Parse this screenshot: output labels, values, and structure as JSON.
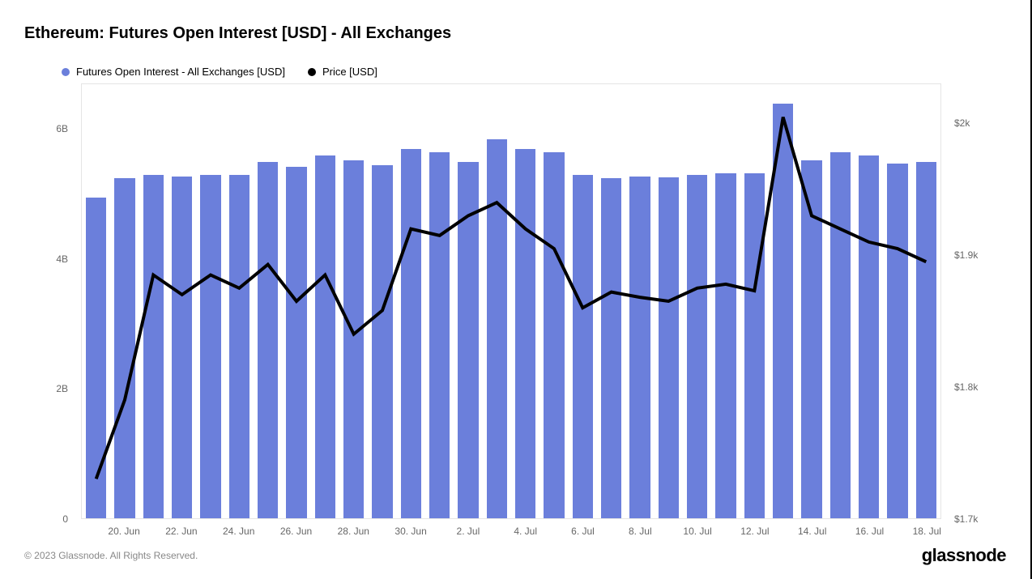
{
  "title": "Ethereum: Futures Open Interest [USD] - All Exchanges",
  "legend": {
    "bars": "Futures Open Interest - All Exchanges [USD]",
    "line": "Price [USD]"
  },
  "chart": {
    "type": "bar+line",
    "background_color": "#ffffff",
    "plot_border_color": "#e5e5e5",
    "bar_color": "#6b7fdb",
    "line_color": "#000000",
    "line_width": 2,
    "bar_width_ratio": 0.72,
    "x_labels": [
      "20. Jun",
      "22. Jun",
      "24. Jun",
      "26. Jun",
      "28. Jun",
      "30. Jun",
      "2. Jul",
      "4. Jul",
      "6. Jul",
      "8. Jul",
      "10. Jul",
      "12. Jul",
      "14. Jul",
      "16. Jul",
      "18. Jul"
    ],
    "x_label_every": 2,
    "x_label_start_index": 1,
    "y_left": {
      "min": 0,
      "max": 6700000000,
      "ticks": [
        0,
        2000000000,
        4000000000,
        6000000000
      ],
      "tick_labels": [
        "0",
        "2B",
        "4B",
        "6B"
      ],
      "fontsize": 12,
      "color": "#666666"
    },
    "y_right": {
      "min": 1700,
      "max": 2030,
      "ticks": [
        1700,
        1800,
        1900,
        2000
      ],
      "tick_labels": [
        "$1.7k",
        "$1.8k",
        "$1.9k",
        "$2k"
      ],
      "fontsize": 12,
      "color": "#666666"
    },
    "dates": [
      "19. Jun",
      "20. Jun",
      "21. Jun",
      "22. Jun",
      "23. Jun",
      "24. Jun",
      "25. Jun",
      "26. Jun",
      "27. Jun",
      "28. Jun",
      "29. Jun",
      "30. Jun",
      "1. Jul",
      "2. Jul",
      "3. Jul",
      "4. Jul",
      "5. Jul",
      "6. Jul",
      "7. Jul",
      "8. Jul",
      "9. Jul",
      "10. Jul",
      "11. Jul",
      "12. Jul",
      "13. Jul",
      "14. Jul",
      "15. Jul",
      "16. Jul",
      "17. Jul",
      "18. Jul"
    ],
    "bar_values": [
      4950000000,
      5250000000,
      5300000000,
      5280000000,
      5300000000,
      5300000000,
      5500000000,
      5420000000,
      5600000000,
      5520000000,
      5450000000,
      5700000000,
      5650000000,
      5500000000,
      5850000000,
      5700000000,
      5650000000,
      5300000000,
      5250000000,
      5280000000,
      5260000000,
      5300000000,
      5320000000,
      5320000000,
      6400000000,
      5520000000,
      5650000000,
      5600000000,
      5480000000,
      5500000000
    ],
    "line_values": [
      1730,
      1790,
      1885,
      1870,
      1885,
      1875,
      1893,
      1865,
      1885,
      1840,
      1858,
      1920,
      1915,
      1930,
      1940,
      1920,
      1905,
      1860,
      1872,
      1868,
      1865,
      1875,
      1878,
      1873,
      2005,
      1930,
      1920,
      1910,
      1905,
      1895
    ]
  },
  "footer": {
    "copyright": "© 2023 Glassnode. All Rights Reserved.",
    "brand": "glassnode"
  }
}
